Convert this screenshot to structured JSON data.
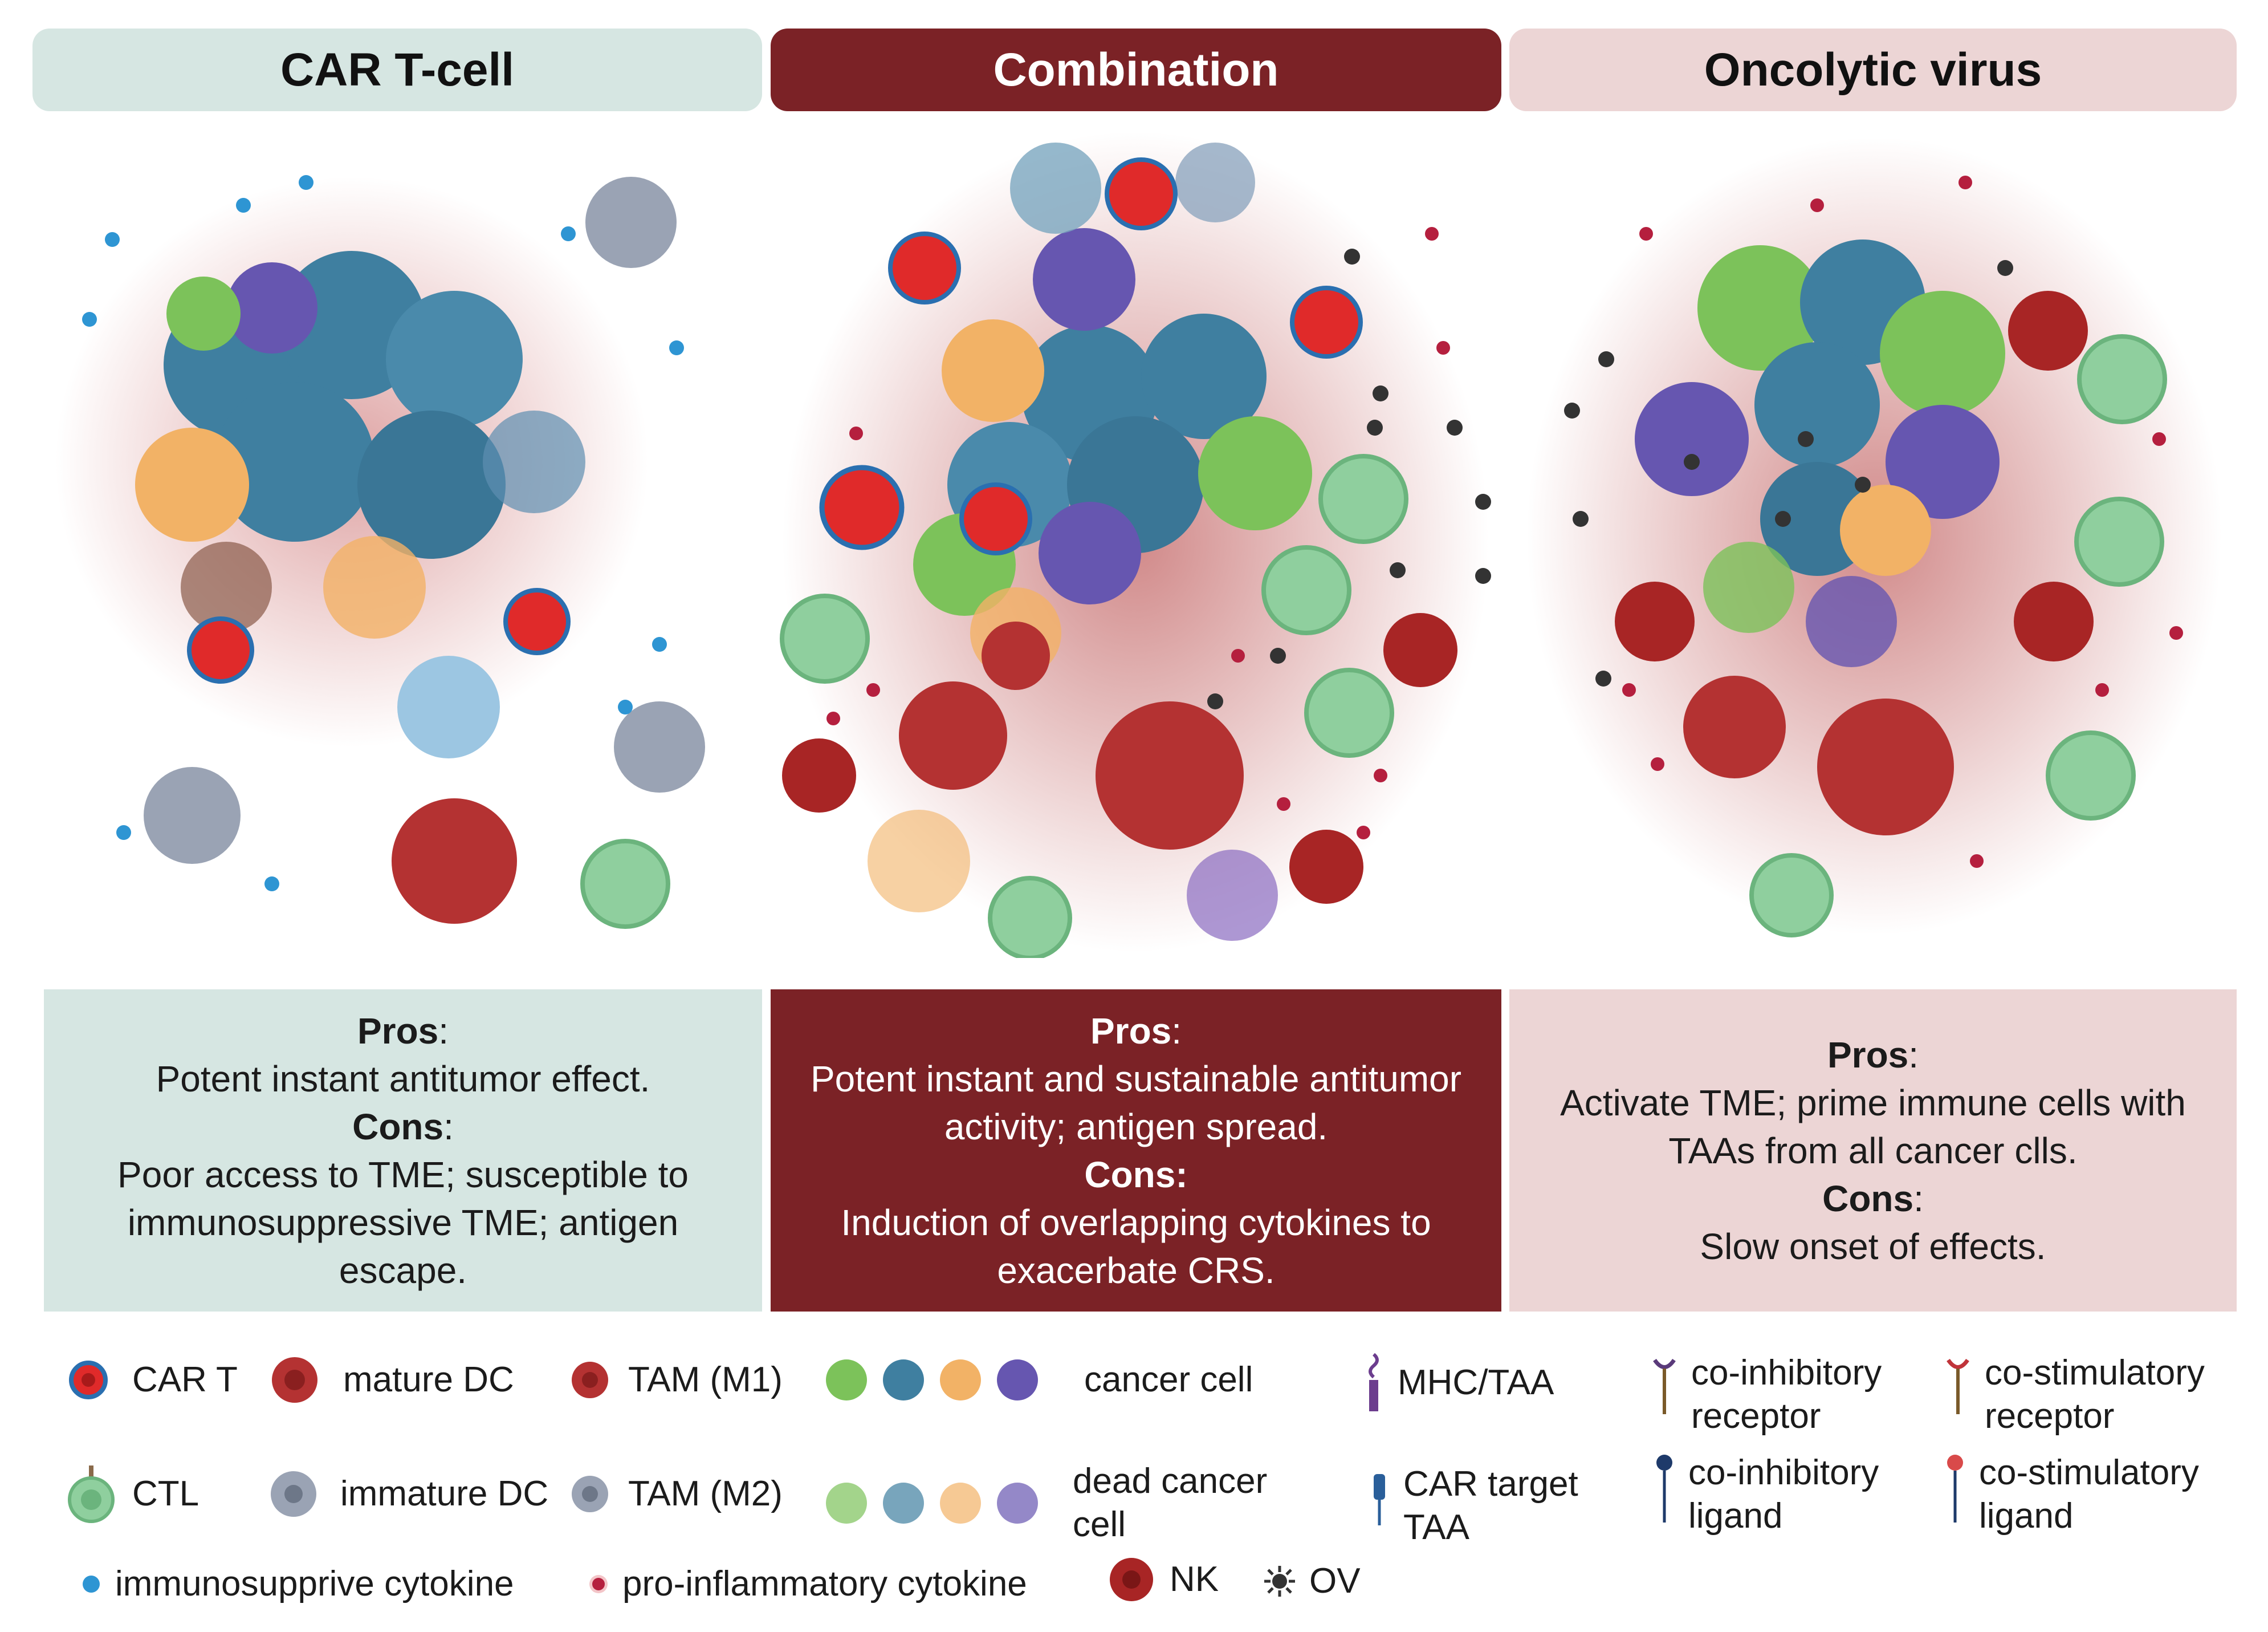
{
  "columns": {
    "car_t": {
      "title": "CAR T-cell",
      "pros_label": "Pros",
      "pros_text": "Potent instant antitumor effect.",
      "cons_label": "Cons",
      "cons_text": "Poor access to TME; susceptible to immunosuppressive TME; antigen escape.",
      "header_color": "#d6e6e2"
    },
    "combination": {
      "title": "Combination",
      "pros_label": "Pros",
      "pros_text": "Potent instant and sustainable antitumor activity; antigen spread.",
      "cons_label": "Cons:",
      "cons_text": "Induction of overlapping cytokines to exacerbate CRS.",
      "header_color": "#7b2226"
    },
    "oncolytic": {
      "title": "Oncolytic virus",
      "pros_label": "Pros",
      "pros_text": "Activate TME; prime immune cells with TAAs from all cancer clls.",
      "cons_label": "Cons",
      "cons_text": "Slow onset of effects.",
      "header_color": "#ecd5d5"
    }
  },
  "legend": {
    "car_t": "CAR T",
    "mature_dc": "mature DC",
    "tam_m1": "TAM (M1)",
    "cancer_cell": "cancer cell",
    "mhc_taa": "MHC/TAA",
    "co_inhibitory_receptor_1": "co-inhibitory",
    "co_inhibitory_receptor_2": "receptor",
    "co_stimulatory_receptor_1": "co-stimulatory",
    "co_stimulatory_receptor_2": "receptor",
    "ctl": "CTL",
    "immature_dc": "immature DC",
    "tam_m2": "TAM (M2)",
    "dead_cancer_cell_1": "dead cancer",
    "dead_cancer_cell_2": "cell",
    "car_target_taa_1": "CAR target",
    "car_target_taa_2": "TAA",
    "co_inhibitory_ligand_1": "co-inhibitory",
    "co_inhibitory_ligand_2": "ligand",
    "co_stimulatory_ligand_1": "co-stimulatory",
    "co_stimulatory_ligand_2": "ligand",
    "immunosuppressive_cytokine": "immunosupprive cytokine",
    "pro_inflammatory_cytokine": "pro-inflammatory cytokine",
    "nk": "NK",
    "ov": "OV"
  },
  "colors": {
    "car_t_red": "#e02a2a",
    "cancer_teal": "#3f7fa0",
    "cancer_green": "#7cc25a",
    "cancer_orange": "#f2b266",
    "cancer_purple": "#6656b0",
    "ctl_green": "#8fcf9e",
    "dc_red": "#b43232",
    "immature_grey": "#9aa3b4",
    "cytokine_blue": "#2e95d3",
    "cytokine_red": "#b51f3e",
    "nk_red": "#a82525",
    "ov_dark": "#333333"
  }
}
